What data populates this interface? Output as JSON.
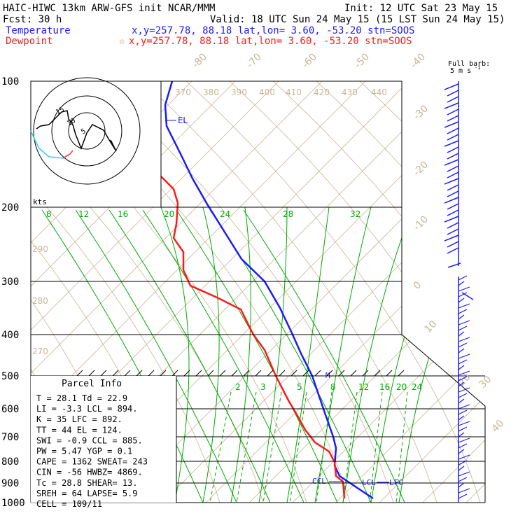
{
  "header": {
    "title": "HAIC-HIWC 13km ARW-GFS init   NCAR/MMM",
    "init": "Init: 12 UTC Sat 23 May 15",
    "fcst": "Fcst:   30 h",
    "valid": "Valid: 18 UTC Sun 24 May 15 (15 LST Sun 24 May 15)",
    "temp_label": "Temperature",
    "temp_info": "x,y=257.78, 88.18    lat,lon=  3.60, -53.20  stn=SOOS",
    "dew_label": "Dewpoint",
    "dew_info": "x,y=257.78, 88.18    lat,lon=  3.60, -53.20  stn=SOOS",
    "barb_title": "Full barb:",
    "barb_unit": "5 m s",
    "barb_sup": "-1",
    "colors": {
      "temperature": "#1a1aff",
      "dewpoint": "#ff1a1a",
      "mixing_ratio": "#00aa00",
      "dry_adiabat": "#c8b496"
    }
  },
  "chart_data": {
    "type": "line",
    "pressure_levels": [
      "100",
      "200",
      "300",
      "400",
      "500",
      "600",
      "700",
      "800",
      "900",
      "1000"
    ],
    "skew_temp_labels": [
      "-80",
      "-70",
      "-60",
      "-50",
      "-40",
      "-30",
      "-20",
      "-10",
      "0",
      "10",
      "20",
      "30",
      "40"
    ],
    "theta_labels": [
      "370",
      "380",
      "390",
      "400",
      "410",
      "420",
      "430",
      "440",
      "290",
      "280",
      "270"
    ],
    "mixing_ratio_upper": [
      "8",
      "12",
      "16",
      "20",
      "24",
      "28",
      "32"
    ],
    "mixing_ratio_lower": [
      "2",
      "3",
      "5",
      "8",
      "12",
      "16",
      "20",
      "24"
    ],
    "parcel_markers": {
      "el": "EL",
      "ccl": "CCL",
      "lcl": "LCL",
      "lfc": "LFC",
      "m": "M"
    },
    "series": [
      {
        "name": "Temperature",
        "color": "#1a1aff"
      },
      {
        "name": "Dewpoint",
        "color": "#ff1a1a"
      }
    ]
  },
  "hodograph": {
    "unit_label": "kts",
    "ring_labels": [
      "5",
      "10",
      "15"
    ]
  },
  "parcel_info": {
    "title": "Parcel Info",
    "rows": [
      "T   =    28.1  Td =  22.9",
      "LI  =    -3.3  LCL =  894.",
      "K   =      35  LFC =  892.",
      "TT  =      44  EL  =  124.",
      "SWI =    -0.9  CCL =  885.",
      "PW  =    5.47  YGP =   0.1",
      "CAPE =   1362  SWEAT=  243",
      "CIN  =    -56  HWBZ= 4869.",
      "Tc  =    28.8  SHEAR=  13.",
      "SREH =     64  LAPSE=  5.9",
      "CELL = 109/11"
    ]
  }
}
